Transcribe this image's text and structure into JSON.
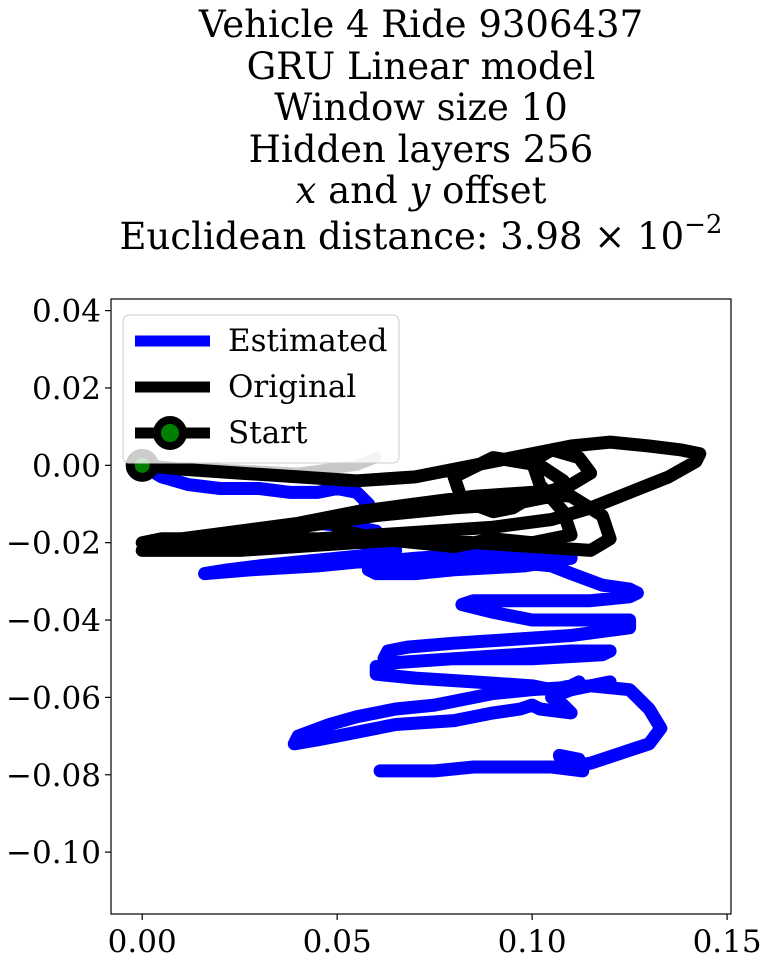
{
  "chart_data": {
    "type": "line",
    "title_lines": [
      "Vehicle 4 Ride 9306437",
      "GRU Linear model",
      "Window size 10",
      "Hidden layers 256",
      "x and y offset",
      "Euclidean distance: 3.98 × 10−2"
    ],
    "title_parts": {
      "var_x": "x",
      "and_text": " and ",
      "var_y": "y",
      "offset_text": " offset",
      "dist_prefix": "Euclidean distance: 3.98 × 10",
      "dist_exponent": "−2"
    },
    "xlabel": "",
    "ylabel": "",
    "xlim": [
      -0.008,
      0.151
    ],
    "ylim": [
      -0.116,
      0.043
    ],
    "xticks": [
      0.0,
      0.05,
      0.1,
      0.15
    ],
    "xtick_labels": [
      "0.00",
      "0.05",
      "0.10",
      "0.15"
    ],
    "yticks": [
      0.04,
      0.02,
      0.0,
      -0.02,
      -0.04,
      -0.06,
      -0.08,
      -0.1
    ],
    "ytick_labels": [
      "0.04",
      "0.02",
      "0.00",
      "−0.02",
      "−0.04",
      "−0.06",
      "−0.08",
      "−0.10"
    ],
    "grid": false,
    "legend_position": "upper-left",
    "legend": [
      "Estimated",
      "Original",
      "Start"
    ],
    "series": [
      {
        "name": "Estimated",
        "color": "#0000ff",
        "x": [
          0.0,
          0.005,
          0.012,
          0.02,
          0.03,
          0.038,
          0.045,
          0.05,
          0.055,
          0.058,
          0.055,
          0.048,
          0.045,
          0.055,
          0.06,
          0.058,
          0.052,
          0.056,
          0.062,
          0.065,
          0.06,
          0.05,
          0.04,
          0.03,
          0.022,
          0.016,
          0.028,
          0.045,
          0.055,
          0.06,
          0.07,
          0.085,
          0.1,
          0.105,
          0.11,
          0.098,
          0.08,
          0.07,
          0.06,
          0.058,
          0.065,
          0.075,
          0.085,
          0.09,
          0.095,
          0.105,
          0.11,
          0.118,
          0.125,
          0.127,
          0.125,
          0.115,
          0.1,
          0.085,
          0.082,
          0.09,
          0.1,
          0.115,
          0.125,
          0.125,
          0.11,
          0.095,
          0.08,
          0.068,
          0.063,
          0.062,
          0.065,
          0.08,
          0.095,
          0.11,
          0.12,
          0.118,
          0.1,
          0.08,
          0.065,
          0.06,
          0.06,
          0.07,
          0.085,
          0.1,
          0.105,
          0.11,
          0.112,
          0.11,
          0.115,
          0.12,
          0.115,
          0.1,
          0.09,
          0.085,
          0.08,
          0.075,
          0.065,
          0.055,
          0.048,
          0.04,
          0.039,
          0.045,
          0.055,
          0.065,
          0.08,
          0.09,
          0.097,
          0.1,
          0.102,
          0.11,
          0.108,
          0.105,
          0.11,
          0.115,
          0.125,
          0.13,
          0.133,
          0.13,
          0.115,
          0.108,
          0.107,
          0.112,
          0.113,
          0.105,
          0.095,
          0.085,
          0.075,
          0.068,
          0.062,
          0.061
        ],
        "y": [
          0.0,
          -0.003,
          -0.005,
          -0.006,
          -0.006,
          -0.007,
          -0.007,
          -0.006,
          -0.007,
          -0.01,
          -0.013,
          -0.014,
          -0.015,
          -0.016,
          -0.017,
          -0.018,
          -0.019,
          -0.02,
          -0.021,
          -0.022,
          -0.023,
          -0.024,
          -0.025,
          -0.026,
          -0.027,
          -0.028,
          -0.027,
          -0.026,
          -0.025,
          -0.025,
          -0.024,
          -0.023,
          -0.023,
          -0.023,
          -0.024,
          -0.026,
          -0.027,
          -0.028,
          -0.028,
          -0.027,
          -0.026,
          -0.025,
          -0.024,
          -0.024,
          -0.025,
          -0.026,
          -0.028,
          -0.031,
          -0.032,
          -0.033,
          -0.034,
          -0.035,
          -0.035,
          -0.035,
          -0.036,
          -0.038,
          -0.04,
          -0.04,
          -0.04,
          -0.042,
          -0.044,
          -0.045,
          -0.046,
          -0.047,
          -0.048,
          -0.05,
          -0.051,
          -0.05,
          -0.049,
          -0.048,
          -0.048,
          -0.049,
          -0.05,
          -0.05,
          -0.051,
          -0.052,
          -0.054,
          -0.055,
          -0.056,
          -0.057,
          -0.058,
          -0.057,
          -0.056,
          -0.058,
          -0.057,
          -0.056,
          -0.057,
          -0.058,
          -0.059,
          -0.06,
          -0.061,
          -0.062,
          -0.063,
          -0.065,
          -0.067,
          -0.07,
          -0.072,
          -0.071,
          -0.069,
          -0.067,
          -0.066,
          -0.064,
          -0.063,
          -0.062,
          -0.063,
          -0.064,
          -0.062,
          -0.06,
          -0.058,
          -0.057,
          -0.058,
          -0.063,
          -0.068,
          -0.072,
          -0.077,
          -0.078,
          -0.075,
          -0.076,
          -0.079,
          -0.078,
          -0.078,
          -0.078,
          -0.079,
          -0.079,
          -0.079,
          -0.079
        ]
      },
      {
        "name": "Original",
        "color": "#000000",
        "x": [
          0.0,
          0.01,
          0.025,
          0.04,
          0.055,
          0.07,
          0.08,
          0.09,
          0.1,
          0.11,
          0.12,
          0.13,
          0.138,
          0.143,
          0.142,
          0.135,
          0.125,
          0.115,
          0.105,
          0.09,
          0.075,
          0.06,
          0.045,
          0.03,
          0.015,
          0.005,
          0.0,
          0.01,
          0.025,
          0.04,
          0.055,
          0.07,
          0.085,
          0.1,
          0.11,
          0.118,
          0.12,
          0.115,
          0.1,
          0.085,
          0.07,
          0.055,
          0.04,
          0.025,
          0.01,
          0.0,
          0.005,
          0.02,
          0.04,
          0.06,
          0.08,
          0.095,
          0.105,
          0.108,
          0.102,
          0.09,
          0.08,
          0.082,
          0.09,
          0.095,
          0.1,
          0.11,
          0.115,
          0.112,
          0.105,
          0.1,
          0.102,
          0.108,
          0.11,
          0.1,
          0.09,
          0.085,
          0.08,
          0.07,
          0.06,
          0.052,
          0.05
        ],
        "y": [
          0.0,
          -0.001,
          -0.002,
          -0.003,
          -0.004,
          -0.003,
          -0.001,
          0.001,
          0.003,
          0.005,
          0.006,
          0.005,
          0.004,
          0.003,
          0.001,
          -0.003,
          -0.007,
          -0.011,
          -0.014,
          -0.016,
          -0.017,
          -0.018,
          -0.019,
          -0.019,
          -0.019,
          -0.019,
          -0.02,
          -0.019,
          -0.017,
          -0.015,
          -0.012,
          -0.01,
          -0.008,
          -0.007,
          -0.008,
          -0.013,
          -0.019,
          -0.022,
          -0.021,
          -0.02,
          -0.019,
          -0.02,
          -0.021,
          -0.022,
          -0.022,
          -0.022,
          -0.021,
          -0.018,
          -0.016,
          -0.013,
          -0.011,
          -0.01,
          -0.008,
          -0.004,
          0.0,
          0.002,
          -0.003,
          -0.009,
          -0.012,
          -0.011,
          -0.008,
          -0.005,
          -0.002,
          0.002,
          0.004,
          0.001,
          -0.005,
          -0.012,
          -0.018,
          -0.02,
          -0.019,
          -0.02,
          -0.021,
          -0.02,
          -0.019,
          -0.017,
          -0.016
        ]
      },
      {
        "name": "Start",
        "color": "#000000",
        "x": [
          0.0
        ],
        "y": [
          0.0
        ]
      }
    ],
    "trail": {
      "color": "#c8c8c8",
      "x": [
        0.0,
        0.02,
        0.04,
        0.055,
        0.06
      ],
      "y": [
        0.0,
        -0.001,
        -0.002,
        0.0,
        0.002
      ]
    },
    "start_marker": {
      "outer_color": "#000000",
      "inner_color": "#008000"
    }
  }
}
